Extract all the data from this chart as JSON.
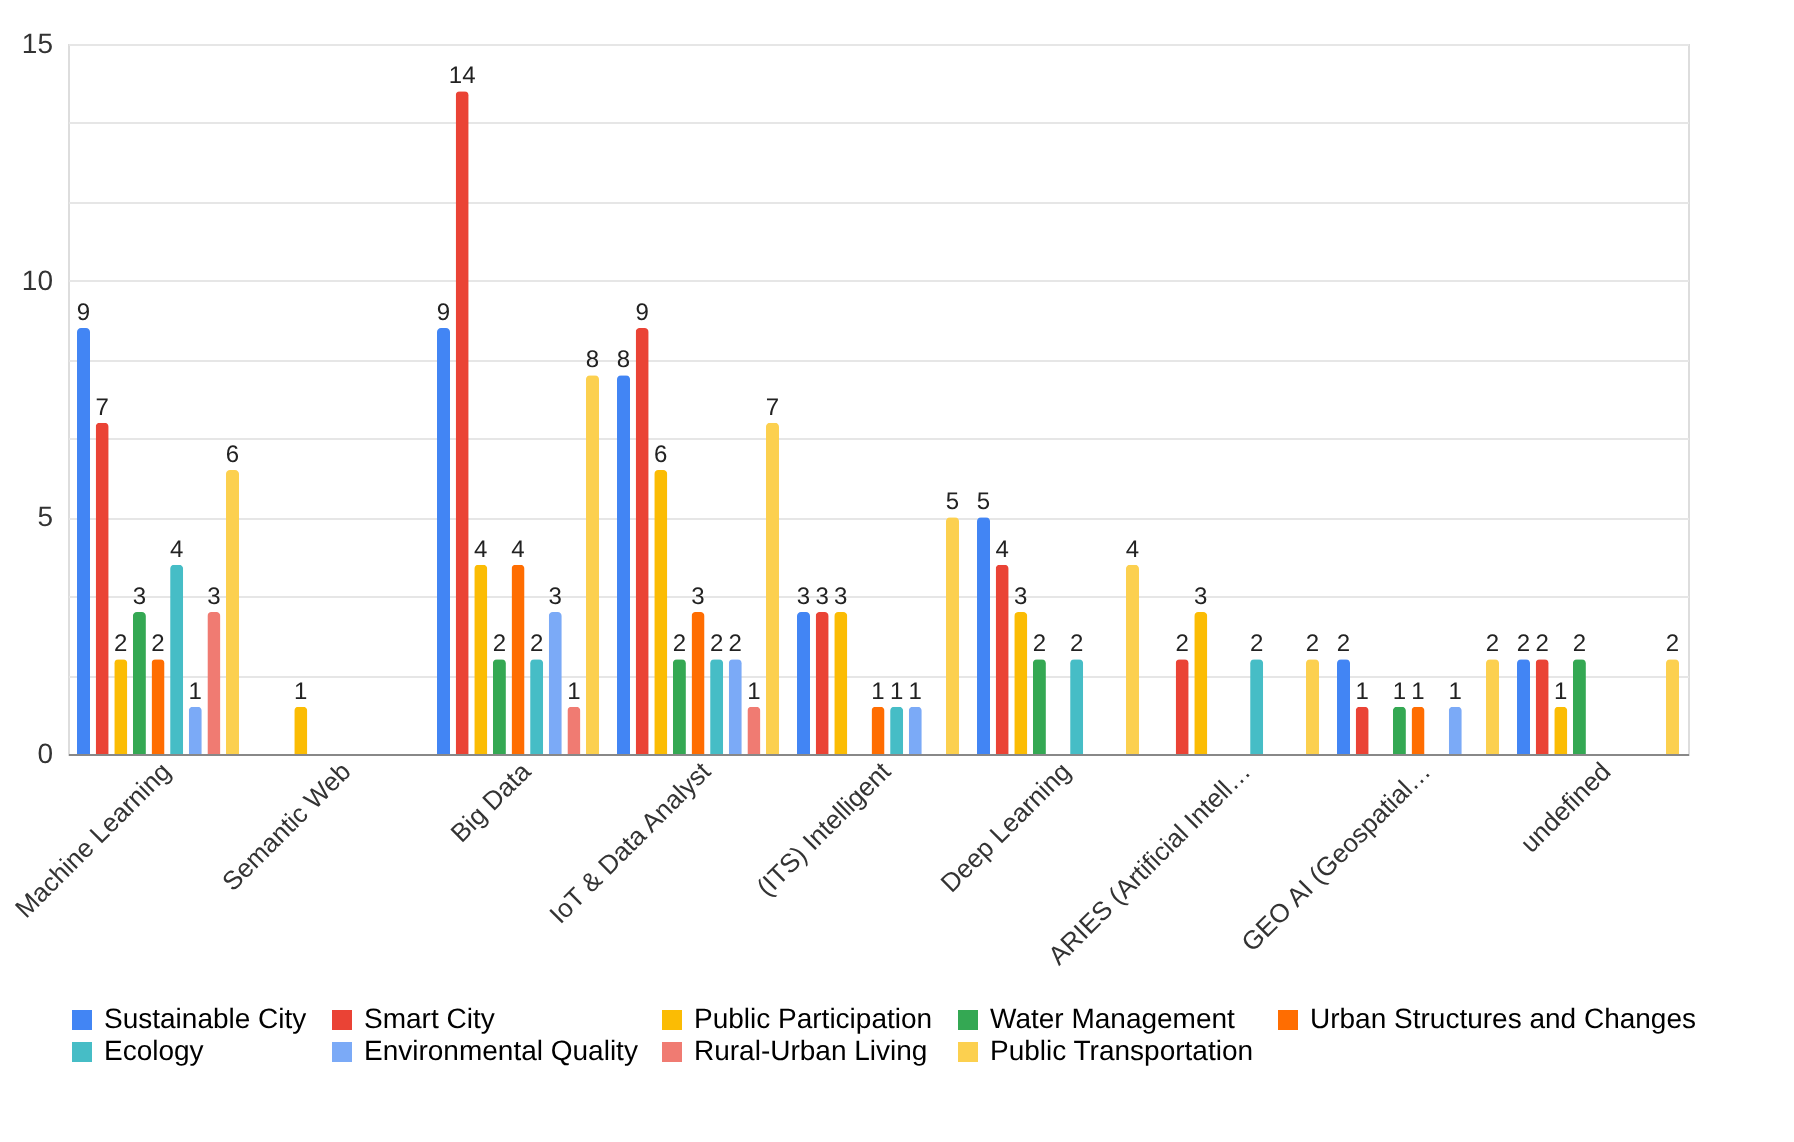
{
  "chart_data": {
    "type": "bar",
    "categories": [
      "Machine Learning",
      "Semantic Web",
      "Big Data",
      "IoT & Data Analyst",
      "(ITS) Intelligent",
      "Deep Learning",
      "ARIES (Artificial Intell…",
      "GEO AI (Geospatial…",
      "undefined"
    ],
    "series": [
      {
        "name": "Sustainable City",
        "color": "#4285f4",
        "values": [
          9,
          null,
          9,
          8,
          3,
          5,
          null,
          2,
          2
        ]
      },
      {
        "name": "Smart City",
        "color": "#ea4335",
        "values": [
          7,
          null,
          14,
          9,
          3,
          4,
          2,
          1,
          2
        ]
      },
      {
        "name": "Public Participation",
        "color": "#fbbc04",
        "values": [
          2,
          1,
          4,
          6,
          3,
          3,
          3,
          null,
          1
        ]
      },
      {
        "name": "Water Management",
        "color": "#34a853",
        "values": [
          3,
          null,
          2,
          2,
          null,
          2,
          null,
          1,
          2
        ]
      },
      {
        "name": "Urban Structures and Changes",
        "color": "#ff6d01",
        "values": [
          2,
          null,
          4,
          3,
          1,
          null,
          null,
          1,
          null
        ]
      },
      {
        "name": "Ecology",
        "color": "#46bdc6",
        "values": [
          4,
          null,
          2,
          2,
          1,
          2,
          2,
          null,
          null
        ]
      },
      {
        "name": "Environmental Quality",
        "color": "#7baaf7",
        "values": [
          1,
          null,
          3,
          2,
          1,
          null,
          null,
          1,
          null
        ]
      },
      {
        "name": "Rural-Urban Living",
        "color": "#f07b72",
        "values": [
          3,
          null,
          1,
          1,
          null,
          null,
          null,
          null,
          null
        ]
      },
      {
        "name": "Public Transportation",
        "color": "#fcd04f",
        "values": [
          6,
          null,
          8,
          7,
          5,
          4,
          2,
          2,
          2
        ]
      }
    ],
    "ylim": [
      0,
      15
    ],
    "yticks": [
      0,
      {
        "value": 1.6667,
        "label": null
      },
      {
        "value": 3.3333,
        "label": null
      },
      5,
      {
        "value": 6.6667,
        "label": null
      },
      {
        "value": 8.3333,
        "label": null
      },
      10,
      {
        "value": 11.6667,
        "label": null
      },
      {
        "value": 13.3333,
        "label": null
      },
      15
    ],
    "grid": "y",
    "legend": "bottom",
    "data_labels": true
  }
}
